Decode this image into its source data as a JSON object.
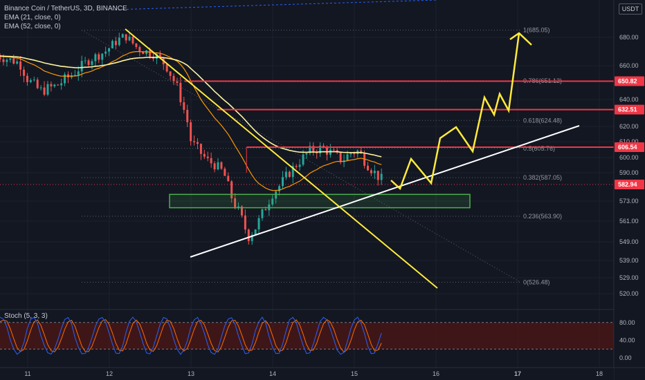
{
  "header": {
    "symbol_line": "Binance Coin / TetherUS, 3D, BINANCE",
    "indicators": [
      "EMA (21, close, 0)",
      "EMA (52, close, 0)"
    ],
    "currency": "USDT"
  },
  "stoch": {
    "title": "Stoch (5, 3, 3)",
    "axis_labels": [
      "80.00",
      "40.00",
      "0.00"
    ],
    "axis_values": [
      80,
      40,
      0
    ],
    "band": [
      20,
      80
    ],
    "colors": {
      "k": "#2962ff",
      "d": "#ff6d00",
      "band": "#4a1616"
    }
  },
  "chart_data": {
    "type": "candlestick",
    "y_tick_labels": [
      "680.00",
      "660.00",
      "640.00",
      "620.00",
      "610.00",
      "600.00",
      "590.00",
      "573.00",
      "561.00",
      "549.00",
      "539.00",
      "529.00",
      "520.00"
    ],
    "y_tick_values": [
      680,
      660,
      640,
      620,
      610,
      600,
      590,
      573,
      561,
      549,
      539,
      529,
      520
    ],
    "x_tick_labels": [
      "11",
      "12",
      "13",
      "14",
      "15",
      "16",
      "17",
      "18"
    ],
    "x_tick_values": [
      11,
      12,
      13,
      14,
      15,
      16,
      17,
      18
    ],
    "x_range": [
      10.62,
      18.5
    ],
    "price_tags": [
      {
        "label": "650.82",
        "value": 650.82,
        "color": "#f23645"
      },
      {
        "label": "632.51",
        "value": 632.51,
        "color": "#f23645"
      },
      {
        "label": "606.54",
        "value": 606.54,
        "color": "#f23645"
      },
      {
        "label": "582.94",
        "value": 582.94,
        "color": "#f23645"
      }
    ],
    "fib_levels": [
      {
        "label": "1(685.05)",
        "value": 685.05
      },
      {
        "label": "0.786(651.12)",
        "value": 651.12
      },
      {
        "label": "0.618(624.48)",
        "value": 624.48
      },
      {
        "label": "0.5(605.76)",
        "value": 605.76
      },
      {
        "label": "0.382(587.05)",
        "value": 587.05
      },
      {
        "label": "0.236(563.90)",
        "value": 563.9
      },
      {
        "label": "0(526.48)",
        "value": 526.48
      }
    ],
    "colors": {
      "up": "#26a69a",
      "down": "#ef5350",
      "ema21": "#ff9800",
      "ema52": "#fff59d",
      "resistance": "#f23645",
      "trend": "#ffffff",
      "projection": "#ffeb3b",
      "zone": "#4caf50"
    }
  }
}
